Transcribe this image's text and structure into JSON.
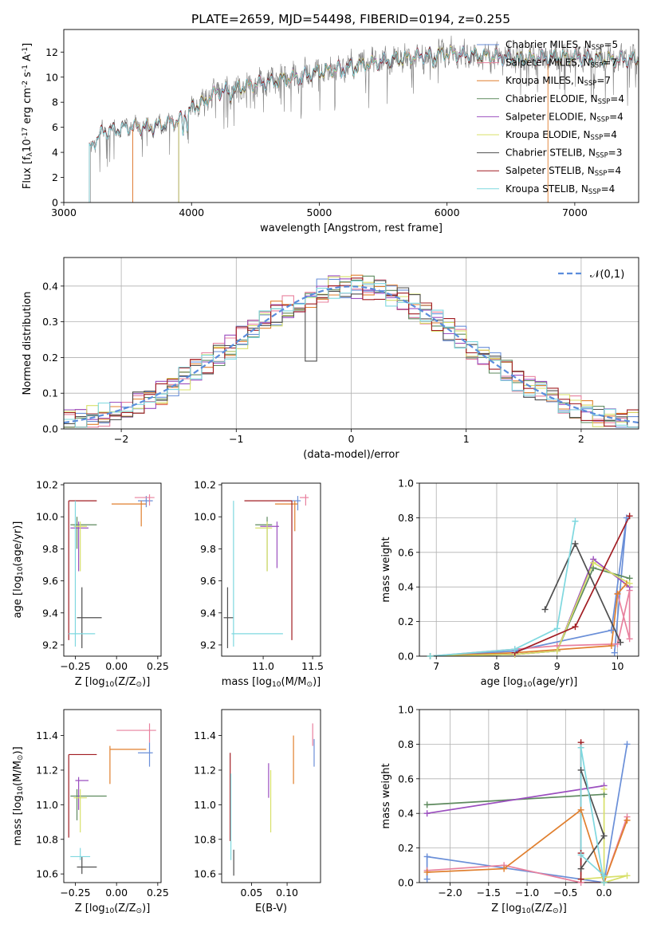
{
  "figure_title": "PLATE=2659, MJD=54498, FIBERID=0194, z=0.255",
  "colors": {
    "chabrier_miles": "#6a8fd8",
    "salpeter_miles": "#e8809e",
    "kroupa_miles": "#e07f2e",
    "chabrier_elodie": "#5e8a5e",
    "salpeter_elodie": "#9b4fbf",
    "kroupa_elodie": "#d8e06a",
    "chabrier_stelib": "#4f4f4f",
    "salpeter_stelib": "#a11c22",
    "kroupa_stelib": "#7fd8df"
  },
  "chart_data": [
    {
      "id": "spectrum",
      "type": "line",
      "xlabel": "wavelength [Angstrom, rest frame]",
      "ylabel": "Flux [f$_\\lambda$10$^{-17}$ erg cm$^{-2}$ s$^{-1}$ A$^{-1}$]",
      "xlim": [
        3000,
        7500
      ],
      "ylim": [
        0,
        13.8
      ],
      "xticks": [
        3000,
        4000,
        5000,
        6000,
        7000
      ],
      "yticks": [
        0,
        2,
        4,
        6,
        8,
        10,
        12
      ],
      "legend_position": "top-right",
      "series": [
        {
          "name": "Chabrier MILES, N$_{SSP}$=5",
          "key": "chabrier_miles"
        },
        {
          "name": "Salpeter MILES, N$_{SSP}$=7",
          "key": "salpeter_miles"
        },
        {
          "name": "Kroupa MILES, N$_{SSP}$=7",
          "key": "kroupa_miles"
        },
        {
          "name": "Chabrier ELODIE, N$_{SSP}$=4",
          "key": "chabrier_elodie"
        },
        {
          "name": "Salpeter ELODIE, N$_{SSP}$=4",
          "key": "salpeter_elodie"
        },
        {
          "name": "Kroupa ELODIE, N$_{SSP}$=4",
          "key": "kroupa_elodie"
        },
        {
          "name": "Chabrier STELIB, N$_{SSP}$=3",
          "key": "chabrier_stelib"
        },
        {
          "name": "Salpeter STELIB, N$_{SSP}$=4",
          "key": "salpeter_stelib"
        },
        {
          "name": "Kroupa STELIB, N$_{SSP}$=4",
          "key": "kroupa_stelib"
        }
      ],
      "continuum": [
        [
          3200,
          4.2
        ],
        [
          3300,
          5.6
        ],
        [
          3500,
          6.1
        ],
        [
          3700,
          6.0
        ],
        [
          3900,
          6.5
        ],
        [
          4000,
          7.5
        ],
        [
          4200,
          8.8
        ],
        [
          4500,
          9.4
        ],
        [
          5000,
          10.4
        ],
        [
          5500,
          11.3
        ],
        [
          6000,
          11.9
        ],
        [
          6500,
          11.5
        ],
        [
          7000,
          11.6
        ],
        [
          7300,
          11.4
        ]
      ],
      "model_starts": {
        "miles": 3540,
        "elodie": 3900,
        "stelib": 3200
      },
      "data_start": 3210
    },
    {
      "id": "residual-histogram",
      "type": "line",
      "xlabel": "(data-model)/error",
      "ylabel": "Normed distribution",
      "xlim": [
        -2.5,
        2.5
      ],
      "ylim": [
        0,
        0.48
      ],
      "xticks": [
        -2,
        -1,
        0,
        1,
        2
      ],
      "yticks": [
        0,
        0.1,
        0.2,
        0.3,
        0.4
      ],
      "legend": "$\\mathcal{N}(0,1)$",
      "legend_position": "top-right",
      "bin_width": 0.1,
      "bin_start": -2.5
    },
    {
      "id": "age-vs-z",
      "type": "scatter",
      "xlabel": "Z [log$_{10}$(Z/Z$_\\odot$)]",
      "ylabel": "age  [log$_{10}$(age/yr)]",
      "xlim": [
        -0.32,
        0.27
      ],
      "ylim": [
        9.13,
        10.21
      ],
      "xticks": [
        -0.25,
        0.0,
        0.25
      ],
      "xticklabels": [
        "−0.25",
        "0.00",
        "0.25"
      ],
      "yticks": [
        9.2,
        9.4,
        9.6,
        9.8,
        10.0,
        10.2
      ],
      "points": [
        {
          "key": "chabrier_miles",
          "x": 0.18,
          "y": 10.1,
          "xe": [
            0.13,
            0.22
          ],
          "ye": [
            10.06,
            10.13
          ]
        },
        {
          "key": "salpeter_miles",
          "x": 0.2,
          "y": 10.12,
          "xe": [
            0.11,
            0.23
          ],
          "ye": [
            10.07,
            10.14
          ]
        },
        {
          "key": "kroupa_miles",
          "x": 0.15,
          "y": 10.08,
          "xe": [
            -0.03,
            0.18
          ],
          "ye": [
            9.94,
            10.1
          ]
        },
        {
          "key": "chabrier_elodie",
          "x": -0.24,
          "y": 9.95,
          "xe": [
            -0.28,
            -0.12
          ],
          "ye": [
            9.8,
            10.0
          ]
        },
        {
          "key": "salpeter_elodie",
          "x": -0.23,
          "y": 9.93,
          "xe": [
            -0.28,
            -0.17
          ],
          "ye": [
            9.66,
            9.97
          ]
        },
        {
          "key": "kroupa_elodie",
          "x": -0.22,
          "y": 9.94,
          "xe": [
            -0.26,
            -0.18
          ],
          "ye": [
            9.66,
            9.97
          ]
        },
        {
          "key": "chabrier_stelib",
          "x": -0.21,
          "y": 9.37,
          "xe": [
            -0.24,
            -0.09
          ],
          "ye": [
            9.18,
            9.56
          ]
        },
        {
          "key": "salpeter_stelib",
          "x": -0.29,
          "y": 10.1,
          "xe": [
            -0.29,
            -0.12
          ],
          "ye": [
            9.23,
            10.1
          ]
        },
        {
          "key": "kroupa_stelib",
          "x": -0.25,
          "y": 9.27,
          "xe": [
            -0.29,
            -0.13
          ],
          "ye": [
            9.19,
            10.1
          ]
        }
      ]
    },
    {
      "id": "age-vs-mass",
      "type": "scatter",
      "xlabel": "mass [log$_{10}$(M/M$_\\odot$)]",
      "xlim": [
        10.58,
        11.58
      ],
      "ylim": [
        9.13,
        10.21
      ],
      "xticks": [
        11.0,
        11.5
      ],
      "xticklabels": [
        "11.0",
        "11.5"
      ],
      "yticks": [
        9.2,
        9.4,
        9.6,
        9.8,
        10.0,
        10.2
      ],
      "points": [
        {
          "key": "chabrier_miles",
          "x": 11.35,
          "y": 10.1,
          "xe": [
            11.28,
            11.38
          ],
          "ye": [
            10.04,
            10.13
          ]
        },
        {
          "key": "salpeter_miles",
          "x": 11.43,
          "y": 10.12,
          "xe": [
            11.37,
            11.46
          ],
          "ye": [
            10.07,
            10.14
          ]
        },
        {
          "key": "kroupa_miles",
          "x": 11.32,
          "y": 10.08,
          "xe": [
            11.12,
            11.35
          ],
          "ye": [
            9.91,
            10.1
          ]
        },
        {
          "key": "chabrier_elodie",
          "x": 11.04,
          "y": 9.95,
          "xe": [
            10.92,
            11.09
          ],
          "ye": [
            9.66,
            10.0
          ]
        },
        {
          "key": "salpeter_elodie",
          "x": 11.14,
          "y": 9.94,
          "xe": [
            10.97,
            11.16
          ],
          "ye": [
            9.68,
            9.97
          ]
        },
        {
          "key": "kroupa_elodie",
          "x": 11.04,
          "y": 9.93,
          "xe": [
            10.92,
            11.09
          ],
          "ye": [
            9.66,
            9.97
          ]
        },
        {
          "key": "chabrier_stelib",
          "x": 10.64,
          "y": 9.37,
          "xe": [
            10.6,
            10.7
          ],
          "ye": [
            9.18,
            9.56
          ]
        },
        {
          "key": "salpeter_stelib",
          "x": 11.29,
          "y": 10.1,
          "xe": [
            10.81,
            11.29
          ],
          "ye": [
            9.23,
            10.1
          ]
        },
        {
          "key": "kroupa_stelib",
          "x": 10.7,
          "y": 9.27,
          "xe": [
            10.68,
            11.2
          ],
          "ye": [
            9.19,
            10.1
          ]
        }
      ]
    },
    {
      "id": "mass-weight-vs-age",
      "type": "line",
      "xlabel": "age  [log$_{10}$(age/yr)]",
      "ylabel": "mass weight",
      "xlim": [
        6.72,
        10.35
      ],
      "ylim": [
        0,
        1.0
      ],
      "xticks": [
        7,
        8,
        9,
        10
      ],
      "yticks": [
        0,
        0.2,
        0.4,
        0.6,
        0.8,
        1.0
      ],
      "series": [
        {
          "key": "chabrier_miles",
          "x": [
            6.9,
            8.3,
            9.9,
            10.15,
            9.95
          ],
          "y": [
            0.0,
            0.03,
            0.15,
            0.8,
            0.02
          ]
        },
        {
          "key": "salpeter_miles",
          "x": [
            6.9,
            8.3,
            9.0,
            10.0,
            10.2,
            10.2,
            10.0
          ],
          "y": [
            0.0,
            0.04,
            0.06,
            0.07,
            0.38,
            0.1,
            0.36
          ]
        },
        {
          "key": "kroupa_miles",
          "x": [
            6.9,
            8.3,
            9.9,
            10.0,
            10.15
          ],
          "y": [
            0.0,
            0.02,
            0.06,
            0.36,
            0.42
          ]
        },
        {
          "key": "chabrier_elodie",
          "x": [
            6.9,
            8.3,
            9.0,
            9.6,
            10.2
          ],
          "y": [
            0.0,
            0.01,
            0.03,
            0.51,
            0.45
          ]
        },
        {
          "key": "salpeter_elodie",
          "x": [
            6.9,
            8.3,
            9.0,
            9.6,
            10.2
          ],
          "y": [
            0.0,
            0.01,
            0.03,
            0.56,
            0.4
          ]
        },
        {
          "key": "kroupa_elodie",
          "x": [
            6.9,
            8.3,
            9.0,
            9.6,
            10.2
          ],
          "y": [
            0.0,
            0.01,
            0.03,
            0.54,
            0.42
          ]
        },
        {
          "key": "chabrier_stelib",
          "x": [
            8.8,
            9.3,
            10.05
          ],
          "y": [
            0.27,
            0.65,
            0.08
          ]
        },
        {
          "key": "salpeter_stelib",
          "x": [
            8.3,
            9.3,
            10.2
          ],
          "y": [
            0.02,
            0.17,
            0.81
          ]
        },
        {
          "key": "kroupa_stelib",
          "x": [
            6.9,
            8.3,
            9.0,
            9.3
          ],
          "y": [
            0.0,
            0.04,
            0.16,
            0.78
          ]
        }
      ]
    },
    {
      "id": "mass-vs-z",
      "type": "scatter",
      "xlabel": "Z [log$_{10}$(Z/Z$_\\odot$)]",
      "ylabel": "mass [log$_{10}$(M/M$_\\odot$)]",
      "xlim": [
        -0.32,
        0.27
      ],
      "ylim": [
        10.55,
        11.55
      ],
      "xticks": [
        -0.25,
        0.0,
        0.25
      ],
      "xticklabels": [
        "−0.25",
        "0.00",
        "0.25"
      ],
      "yticks": [
        10.6,
        10.8,
        11.0,
        11.2,
        11.4
      ],
      "points": [
        {
          "key": "chabrier_miles",
          "x": 0.2,
          "y": 11.3,
          "xe": [
            0.13,
            0.22
          ],
          "ye": [
            11.22,
            11.36
          ]
        },
        {
          "key": "salpeter_miles",
          "x": 0.2,
          "y": 11.43,
          "xe": [
            0.0,
            0.24
          ],
          "ye": [
            11.36,
            11.47
          ]
        },
        {
          "key": "kroupa_miles",
          "x": -0.04,
          "y": 11.32,
          "xe": [
            -0.04,
            0.18
          ],
          "ye": [
            11.12,
            11.34
          ]
        },
        {
          "key": "chabrier_elodie",
          "x": -0.24,
          "y": 11.05,
          "xe": [
            -0.28,
            -0.06
          ],
          "ye": [
            10.91,
            11.09
          ]
        },
        {
          "key": "salpeter_elodie",
          "x": -0.23,
          "y": 11.14,
          "xe": [
            -0.25,
            -0.17
          ],
          "ye": [
            10.97,
            11.16
          ]
        },
        {
          "key": "kroupa_elodie",
          "x": -0.22,
          "y": 11.04,
          "xe": [
            -0.26,
            -0.18
          ],
          "ye": [
            10.84,
            11.09
          ]
        },
        {
          "key": "chabrier_stelib",
          "x": -0.21,
          "y": 10.64,
          "xe": [
            -0.24,
            -0.12
          ],
          "ye": [
            10.6,
            10.7
          ]
        },
        {
          "key": "salpeter_stelib",
          "x": -0.29,
          "y": 11.29,
          "xe": [
            -0.29,
            -0.12
          ],
          "ye": [
            10.81,
            11.29
          ]
        },
        {
          "key": "kroupa_stelib",
          "x": -0.22,
          "y": 10.7,
          "xe": [
            -0.28,
            -0.16
          ],
          "ye": [
            10.68,
            10.75
          ]
        }
      ]
    },
    {
      "id": "mass-vs-ebv",
      "type": "scatter",
      "xlabel": "E(B-V)",
      "xlim": [
        0.008,
        0.147
      ],
      "ylim": [
        10.55,
        11.55
      ],
      "xticks": [
        0.05,
        0.1
      ],
      "xticklabels": [
        "0.05",
        "0.10"
      ],
      "yticks": [
        10.6,
        10.8,
        11.0,
        11.2,
        11.4
      ],
      "points": [
        {
          "key": "chabrier_miles",
          "x": 0.138,
          "y": 11.3,
          "ye": [
            11.22,
            11.38
          ]
        },
        {
          "key": "salpeter_miles",
          "x": 0.136,
          "y": 11.43,
          "ye": [
            11.34,
            11.47
          ]
        },
        {
          "key": "kroupa_miles",
          "x": 0.109,
          "y": 11.32,
          "ye": [
            11.12,
            11.4
          ]
        },
        {
          "key": "salpeter_elodie",
          "x": 0.074,
          "y": 11.14,
          "ye": [
            11.04,
            11.24
          ]
        },
        {
          "key": "kroupa_elodie",
          "x": 0.077,
          "y": 11.04,
          "ye": [
            10.84,
            11.2
          ]
        },
        {
          "key": "chabrier_stelib",
          "x": 0.025,
          "y": 10.64,
          "ye": [
            10.59,
            10.74
          ]
        },
        {
          "key": "salpeter_stelib",
          "x": 0.02,
          "y": 11.29,
          "ye": [
            10.79,
            11.3
          ]
        },
        {
          "key": "kroupa_stelib",
          "x": 0.021,
          "y": 10.7,
          "ye": [
            10.68,
            11.18
          ]
        }
      ]
    },
    {
      "id": "mass-weight-vs-z",
      "type": "line",
      "xlabel": "Z [log$_{10}$(Z/Z$_\\odot$)]",
      "ylabel": "mass weight",
      "xlim": [
        -2.4,
        0.45
      ],
      "ylim": [
        0,
        1.0
      ],
      "xticks": [
        -2.0,
        -1.5,
        -1.0,
        -0.5,
        0.0
      ],
      "xticklabels": [
        "−2.0",
        "−1.5",
        "−1.0",
        "−0.5",
        "0.0"
      ],
      "yticks": [
        0,
        0.2,
        0.4,
        0.6,
        0.8,
        1.0
      ],
      "series": [
        {
          "key": "chabrier_miles",
          "x": [
            -2.3,
            -2.3,
            0.0,
            0.3
          ],
          "y": [
            0.02,
            0.15,
            0.0,
            0.8
          ]
        },
        {
          "key": "salpeter_miles",
          "x": [
            -2.3,
            -1.3,
            -0.3,
            0.0,
            0.3
          ],
          "y": [
            0.07,
            0.1,
            0.0,
            0.0,
            0.38
          ]
        },
        {
          "key": "kroupa_miles",
          "x": [
            -2.3,
            -1.3,
            -0.3,
            0.0,
            0.3
          ],
          "y": [
            0.06,
            0.08,
            0.42,
            0.0,
            0.36
          ]
        },
        {
          "key": "chabrier_elodie",
          "x": [
            -2.3,
            0.0
          ],
          "y": [
            0.45,
            0.51
          ]
        },
        {
          "key": "salpeter_elodie",
          "x": [
            -2.3,
            0.0
          ],
          "y": [
            0.4,
            0.56
          ]
        },
        {
          "key": "kroupa_elodie",
          "x": [
            0.0,
            0.0,
            0.3,
            -0.3
          ],
          "y": [
            0.54,
            0.0,
            0.04,
            0.02
          ]
        },
        {
          "key": "chabrier_stelib",
          "x": [
            -0.3,
            0.0,
            -0.3
          ],
          "y": [
            0.08,
            0.27,
            0.65
          ]
        },
        {
          "key": "salpeter_stelib",
          "x": [
            -0.3,
            -0.3,
            -0.3
          ],
          "y": [
            0.81,
            0.17,
            0.02
          ]
        },
        {
          "key": "kroupa_stelib",
          "x": [
            0.0,
            -0.3,
            -0.3,
            0.0
          ],
          "y": [
            0.0,
            0.78,
            0.16,
            0.04
          ]
        }
      ]
    }
  ]
}
